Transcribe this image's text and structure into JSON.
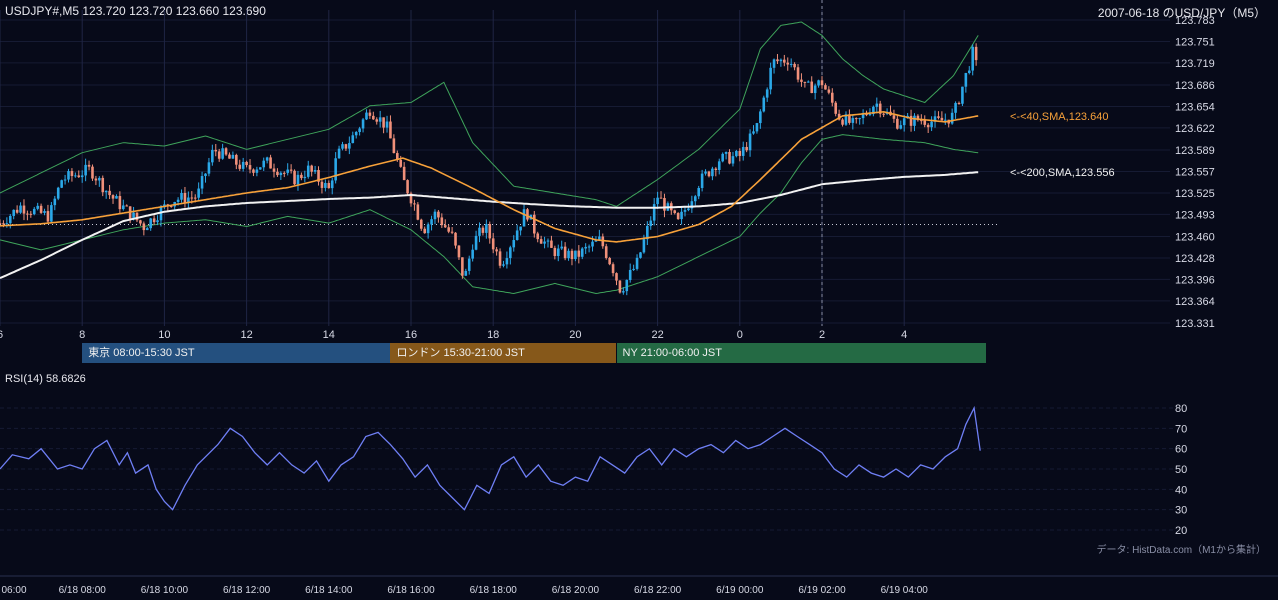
{
  "header": {
    "symbol_line": "USDJPY#,M5 123.720 123.720 123.660 123.690",
    "date_label": "2007-06-18 のUSD/JPY（M5）"
  },
  "sessions": [
    {
      "label": "東京 08:00-15:30 JST",
      "color": "#24507f"
    },
    {
      "label": "ロンドン 15:30-21:00 JST",
      "color": "#86581a"
    },
    {
      "label": "NY 21:00-06:00 JST",
      "color": "#246a44"
    }
  ],
  "rsi": {
    "label": "RSI(14) 58.6826"
  },
  "footer": {
    "source": "データ: HistData.com（M1から集計）"
  },
  "colors": {
    "background": "#070a19",
    "up": "#2ba8e8",
    "down": "#f0907a",
    "sma40": "#f7a13a",
    "sma200": "#f2f2f2",
    "bollinger": "#3fa45b",
    "rsi": "#6f7ff5"
  },
  "chart_data": [
    {
      "type": "candlestick",
      "title": "USDJPY#,M5",
      "y_ticks": [
        "123.783",
        "123.751",
        "123.719",
        "123.686",
        "123.654",
        "123.622",
        "123.589",
        "123.557",
        "123.525",
        "123.493",
        "123.460",
        "123.428",
        "123.396",
        "123.364",
        "123.331"
      ],
      "ylim": [
        123.331,
        123.783
      ],
      "x_ticks": [
        "6",
        "8",
        "10",
        "12",
        "14",
        "16",
        "18",
        "20",
        "22",
        "0",
        "2",
        "4"
      ],
      "overlays": [
        {
          "name": "SMA 40",
          "label": "<-<40,SMA,123.640",
          "last": 123.64,
          "anchors": [
            [
              6.0,
              123.476
            ],
            [
              7.0,
              123.479
            ],
            [
              8.0,
              123.485
            ],
            [
              9.0,
              123.495
            ],
            [
              10.0,
              123.505
            ],
            [
              11.0,
              123.515
            ],
            [
              12.0,
              123.525
            ],
            [
              13.0,
              123.533
            ],
            [
              14.0,
              123.548
            ],
            [
              15.0,
              123.565
            ],
            [
              15.8,
              123.577
            ],
            [
              16.5,
              123.562
            ],
            [
              17.5,
              123.532
            ],
            [
              18.5,
              123.5
            ],
            [
              19.5,
              123.472
            ],
            [
              20.5,
              123.455
            ],
            [
              21.0,
              123.452
            ],
            [
              22.0,
              123.46
            ],
            [
              23.0,
              123.478
            ],
            [
              23.8,
              123.505
            ],
            [
              24.5,
              123.545
            ],
            [
              25.5,
              123.605
            ],
            [
              26.5,
              123.64
            ],
            [
              27.5,
              123.646
            ],
            [
              28.2,
              123.636
            ],
            [
              29.0,
              123.631
            ],
            [
              29.8,
              123.64
            ]
          ]
        },
        {
          "name": "SMA 200",
          "label": "<-<200,SMA,123.556",
          "last": 123.556,
          "anchors": [
            [
              6.0,
              123.398
            ],
            [
              7.0,
              123.425
            ],
            [
              8.0,
              123.455
            ],
            [
              9.0,
              123.483
            ],
            [
              10.0,
              123.497
            ],
            [
              11.0,
              123.505
            ],
            [
              12.0,
              123.51
            ],
            [
              13.0,
              123.513
            ],
            [
              14.0,
              123.516
            ],
            [
              15.0,
              123.518
            ],
            [
              16.0,
              123.522
            ],
            [
              17.0,
              123.517
            ],
            [
              18.0,
              123.512
            ],
            [
              19.0,
              123.508
            ],
            [
              20.0,
              123.505
            ],
            [
              21.0,
              123.503
            ],
            [
              22.0,
              123.503
            ],
            [
              23.0,
              123.505
            ],
            [
              24.0,
              123.51
            ],
            [
              25.0,
              123.522
            ],
            [
              26.0,
              123.538
            ],
            [
              27.0,
              123.544
            ],
            [
              28.0,
              123.549
            ],
            [
              29.0,
              123.552
            ],
            [
              29.8,
              123.556
            ]
          ]
        },
        {
          "name": "Bollinger upper",
          "anchors": [
            [
              6.0,
              123.525
            ],
            [
              7.0,
              123.555
            ],
            [
              8.0,
              123.585
            ],
            [
              9.0,
              123.6
            ],
            [
              10.0,
              123.595
            ],
            [
              11.0,
              123.61
            ],
            [
              12.0,
              123.59
            ],
            [
              13.0,
              123.605
            ],
            [
              14.0,
              123.62
            ],
            [
              15.0,
              123.655
            ],
            [
              16.0,
              123.66
            ],
            [
              16.8,
              123.69
            ],
            [
              17.5,
              123.6
            ],
            [
              18.5,
              123.535
            ],
            [
              19.5,
              123.525
            ],
            [
              20.5,
              123.515
            ],
            [
              21.0,
              123.505
            ],
            [
              22.0,
              123.545
            ],
            [
              23.0,
              123.59
            ],
            [
              24.0,
              123.65
            ],
            [
              24.5,
              123.74
            ],
            [
              25.0,
              123.775
            ],
            [
              25.5,
              123.78
            ],
            [
              26.0,
              123.76
            ],
            [
              26.5,
              123.725
            ],
            [
              27.0,
              123.7
            ],
            [
              27.5,
              123.68
            ],
            [
              28.5,
              123.66
            ],
            [
              29.2,
              123.7
            ],
            [
              29.8,
              123.76
            ]
          ]
        },
        {
          "name": "Bollinger lower",
          "anchors": [
            [
              6.0,
              123.455
            ],
            [
              7.0,
              123.44
            ],
            [
              8.0,
              123.455
            ],
            [
              9.0,
              123.47
            ],
            [
              10.0,
              123.48
            ],
            [
              11.0,
              123.485
            ],
            [
              12.0,
              123.475
            ],
            [
              13.0,
              123.49
            ],
            [
              14.0,
              123.48
            ],
            [
              15.0,
              123.5
            ],
            [
              16.0,
              123.47
            ],
            [
              16.8,
              123.43
            ],
            [
              17.5,
              123.385
            ],
            [
              18.5,
              123.375
            ],
            [
              19.5,
              123.39
            ],
            [
              20.5,
              123.375
            ],
            [
              21.0,
              123.38
            ],
            [
              22.0,
              123.4
            ],
            [
              23.0,
              123.43
            ],
            [
              24.0,
              123.46
            ],
            [
              24.5,
              123.495
            ],
            [
              25.0,
              123.525
            ],
            [
              25.5,
              123.57
            ],
            [
              26.0,
              123.605
            ],
            [
              26.5,
              123.612
            ],
            [
              27.5,
              123.605
            ],
            [
              28.5,
              123.6
            ],
            [
              29.2,
              123.59
            ],
            [
              29.8,
              123.585
            ]
          ]
        }
      ],
      "reference_line": 123.478,
      "dashed_vlines_x": [
        26.0
      ],
      "price_path": [
        [
          6.0,
          123.48
        ],
        [
          6.5,
          123.505
        ],
        [
          7.2,
          123.49
        ],
        [
          7.5,
          123.545
        ],
        [
          8.2,
          123.56
        ],
        [
          8.7,
          123.52
        ],
        [
          9.5,
          123.475
        ],
        [
          10.2,
          123.515
        ],
        [
          10.8,
          123.52
        ],
        [
          11.2,
          123.59
        ],
        [
          12.0,
          123.56
        ],
        [
          12.5,
          123.57
        ],
        [
          13.2,
          123.545
        ],
        [
          13.5,
          123.56
        ],
        [
          14.0,
          123.53
        ],
        [
          14.2,
          123.58
        ],
        [
          14.6,
          123.61
        ],
        [
          15.0,
          123.65
        ],
        [
          15.4,
          123.625
        ],
        [
          15.8,
          123.545
        ],
        [
          16.1,
          123.505
        ],
        [
          16.3,
          123.47
        ],
        [
          16.6,
          123.495
        ],
        [
          17.0,
          123.46
        ],
        [
          17.3,
          123.395
        ],
        [
          17.5,
          123.45
        ],
        [
          17.8,
          123.475
        ],
        [
          18.2,
          123.42
        ],
        [
          18.5,
          123.46
        ],
        [
          18.8,
          123.5
        ],
        [
          19.0,
          123.47
        ],
        [
          19.4,
          123.44
        ],
        [
          20.0,
          123.43
        ],
        [
          20.6,
          123.455
        ],
        [
          20.9,
          123.415
        ],
        [
          21.1,
          123.38
        ],
        [
          21.5,
          123.42
        ],
        [
          22.0,
          123.52
        ],
        [
          22.5,
          123.48
        ],
        [
          23.0,
          123.54
        ],
        [
          23.5,
          123.575
        ],
        [
          24.0,
          123.58
        ],
        [
          24.4,
          123.62
        ],
        [
          24.8,
          123.72
        ],
        [
          25.2,
          123.725
        ],
        [
          25.6,
          123.68
        ],
        [
          26.0,
          123.69
        ],
        [
          26.4,
          123.64
        ],
        [
          26.8,
          123.625
        ],
        [
          27.3,
          123.66
        ],
        [
          27.8,
          123.63
        ],
        [
          28.4,
          123.635
        ],
        [
          28.8,
          123.63
        ],
        [
          29.2,
          123.64
        ],
        [
          29.5,
          123.7
        ],
        [
          29.7,
          123.74
        ],
        [
          29.8,
          123.69
        ]
      ]
    },
    {
      "type": "line",
      "title": "RSI(14)",
      "y_ticks": [
        "80",
        "70",
        "60",
        "50",
        "40",
        "30",
        "20"
      ],
      "ylim": [
        20,
        80
      ],
      "series": [
        {
          "name": "RSI(14)",
          "last": 58.6826,
          "values": [
            [
              6.0,
              50
            ],
            [
              6.3,
              57
            ],
            [
              6.7,
              55
            ],
            [
              7.0,
              60
            ],
            [
              7.4,
              50
            ],
            [
              7.7,
              52
            ],
            [
              8.0,
              50
            ],
            [
              8.3,
              60
            ],
            [
              8.6,
              64
            ],
            [
              8.9,
              52
            ],
            [
              9.1,
              58
            ],
            [
              9.3,
              48
            ],
            [
              9.6,
              52
            ],
            [
              9.8,
              40
            ],
            [
              10.0,
              34
            ],
            [
              10.2,
              30
            ],
            [
              10.5,
              42
            ],
            [
              10.8,
              52
            ],
            [
              11.0,
              56
            ],
            [
              11.3,
              62
            ],
            [
              11.6,
              70
            ],
            [
              11.9,
              66
            ],
            [
              12.2,
              58
            ],
            [
              12.5,
              52
            ],
            [
              12.8,
              58
            ],
            [
              13.1,
              52
            ],
            [
              13.4,
              48
            ],
            [
              13.7,
              54
            ],
            [
              14.0,
              44
            ],
            [
              14.3,
              52
            ],
            [
              14.6,
              56
            ],
            [
              14.9,
              66
            ],
            [
              15.2,
              68
            ],
            [
              15.5,
              62
            ],
            [
              15.8,
              55
            ],
            [
              16.1,
              46
            ],
            [
              16.4,
              52
            ],
            [
              16.7,
              42
            ],
            [
              17.0,
              36
            ],
            [
              17.3,
              30
            ],
            [
              17.6,
              42
            ],
            [
              17.9,
              38
            ],
            [
              18.2,
              52
            ],
            [
              18.5,
              56
            ],
            [
              18.8,
              46
            ],
            [
              19.1,
              52
            ],
            [
              19.4,
              44
            ],
            [
              19.7,
              42
            ],
            [
              20.0,
              46
            ],
            [
              20.3,
              44
            ],
            [
              20.6,
              56
            ],
            [
              20.9,
              52
            ],
            [
              21.2,
              48
            ],
            [
              21.5,
              56
            ],
            [
              21.8,
              60
            ],
            [
              22.1,
              52
            ],
            [
              22.4,
              60
            ],
            [
              22.7,
              56
            ],
            [
              23.0,
              60
            ],
            [
              23.3,
              62
            ],
            [
              23.6,
              58
            ],
            [
              23.9,
              64
            ],
            [
              24.2,
              60
            ],
            [
              24.5,
              62
            ],
            [
              24.8,
              66
            ],
            [
              25.1,
              70
            ],
            [
              25.4,
              66
            ],
            [
              25.7,
              62
            ],
            [
              26.0,
              58
            ],
            [
              26.3,
              50
            ],
            [
              26.6,
              46
            ],
            [
              26.9,
              52
            ],
            [
              27.2,
              48
            ],
            [
              27.5,
              46
            ],
            [
              27.8,
              50
            ],
            [
              28.1,
              46
            ],
            [
              28.4,
              52
            ],
            [
              28.7,
              50
            ],
            [
              29.0,
              56
            ],
            [
              29.3,
              60
            ],
            [
              29.5,
              72
            ],
            [
              29.7,
              80
            ],
            [
              29.85,
              59
            ]
          ]
        }
      ]
    }
  ],
  "bottom_axis": [
    "06:00",
    "6/18 08:00",
    "6/18 10:00",
    "6/18 12:00",
    "6/18 14:00",
    "6/18 16:00",
    "6/18 18:00",
    "6/18 20:00",
    "6/18 22:00",
    "6/19 00:00",
    "6/19 02:00",
    "6/19 04:00"
  ]
}
